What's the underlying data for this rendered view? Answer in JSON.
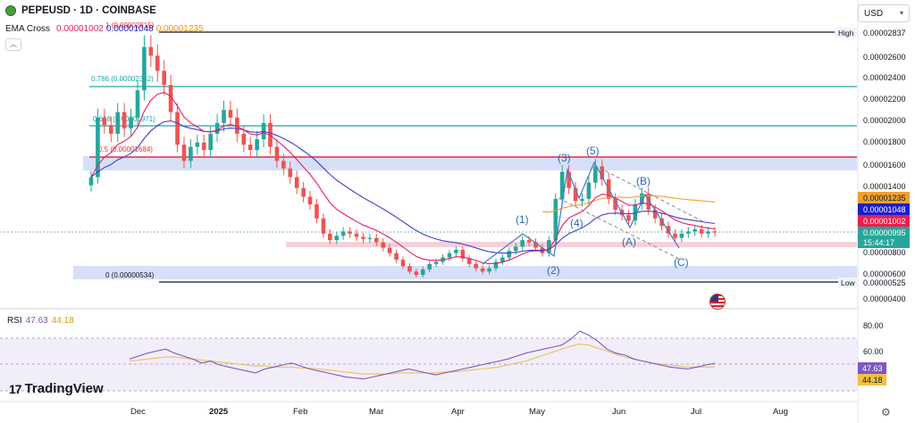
{
  "header": {
    "title": "PEPEUSD · 1D · COINBASE",
    "symbol_icon": "pepe-coin-icon"
  },
  "ema": {
    "label": "EMA Cross",
    "v1": "0.00001002",
    "v2": "0.00001048",
    "v3": "0.00001235"
  },
  "currency": {
    "label": "USD"
  },
  "rsi": {
    "label": "RSI",
    "v1": "47.63",
    "v2": "44.18"
  },
  "logo": {
    "text": "TradingView"
  },
  "colors": {
    "candle_up": "#26a69a",
    "candle_down": "#ef5350",
    "ema_fast": "#e91e63",
    "ema_mid": "#3f3fd0",
    "ema_slow": "#f0a030",
    "rsi": "#7e57c2",
    "rsi_ma": "#e8c25a",
    "fib_teal": "#22a6a6",
    "fib_red": "#e5323a",
    "zone": "#c9d6f5"
  },
  "chart_data": [
    {
      "type": "candlestick",
      "title": "PEPEUSD · 1D · COINBASE",
      "y_scale": "linear",
      "ylim": [
        3.6e-06,
        3e-06
      ],
      "y_ticks": [
        "0.00002600",
        "0.00002400",
        "0.00002200",
        "0.00002000",
        "0.00001800",
        "0.00001600",
        "0.00001400",
        "0.00000800",
        "0.00000600",
        "0.00000400"
      ],
      "x_ticks": [
        "Dec",
        "2025",
        "Feb",
        "Mar",
        "Apr",
        "May",
        "Jun",
        "Jul",
        "Aug"
      ],
      "price_labels": [
        {
          "text": "High",
          "value": "0.00002837"
        },
        {
          "text": "Low",
          "value": "0.00000525"
        },
        {
          "text": "",
          "value": "0.00001235"
        },
        {
          "text": "",
          "value": "0.00001048"
        },
        {
          "text": "",
          "value": "0.00001002"
        },
        {
          "text": "",
          "value": "0.00000995"
        },
        {
          "text": "",
          "value": "15:44:17"
        }
      ],
      "fib_levels": [
        {
          "label": "1 (0.00002815)",
          "value": 2.815e-05
        },
        {
          "label": "0.786 (0.00002342)",
          "value": 2.342e-05
        },
        {
          "label": "0.618 (0.00001971)",
          "value": 1.971e-05
        },
        {
          "label": "0.5 (0.00001684)",
          "value": 1.684e-05
        },
        {
          "label": "0 (0.00000534)",
          "value": 5.34e-06
        }
      ],
      "wave_labels": [
        "(1)",
        "(2)",
        "(3)",
        "(4)",
        "(5)",
        "(A)",
        "(B)",
        "(C)"
      ],
      "closes": [
        1.5e-05,
        2.05e-05,
        1.98e-05,
        1.9e-05,
        2.1e-05,
        1.95e-05,
        2.05e-05,
        2.3e-05,
        2.7e-05,
        2.62e-05,
        2.48e-05,
        2.35e-05,
        2.1e-05,
        1.8e-05,
        1.65e-05,
        1.78e-05,
        1.82e-05,
        1.75e-05,
        1.9e-05,
        2e-05,
        2.12e-05,
        2.05e-05,
        1.9e-05,
        1.8e-05,
        1.75e-05,
        1.85e-05,
        2e-05,
        1.78e-05,
        1.65e-05,
        1.58e-05,
        1.5e-05,
        1.4e-05,
        1.32e-05,
        1.25e-05,
        1.12e-05,
        9.8e-06,
        9.2e-06,
        9.6e-06,
        1e-05,
        9.8e-06,
        9.5e-06,
        9.3e-06,
        9.4e-06,
        9e-06,
        8.5e-06,
        8e-06,
        7.4e-06,
        6.8e-06,
        6.3e-06,
        6e-06,
        6.5e-06,
        7e-06,
        7.2e-06,
        7.6e-06,
        8e-06,
        8.3e-06,
        7.5e-06,
        7e-06,
        6.6e-06,
        6.3e-06,
        6.6e-06,
        7.2e-06,
        7.6e-06,
        8.2e-06,
        8.6e-06,
        9.2e-06,
        9e-06,
        8.5e-06,
        8e-06,
        9.2e-06,
        1.3e-05,
        1.55e-05,
        1.4e-05,
        1.28e-05,
        1.3e-05,
        1.45e-05,
        1.6e-05,
        1.48e-05,
        1.3e-05,
        1.2e-05,
        1.15e-05,
        1.1e-05,
        1.25e-05,
        1.35e-05,
        1.2e-05,
        1.12e-05,
        1.05e-05,
        9.8e-06,
        9.4e-06,
        9.8e-06,
        1e-05,
        1.02e-05,
        9.8e-06,
        1e-05,
        9.9e-06
      ]
    },
    {
      "type": "line",
      "title": "RSI",
      "y_ticks": [
        "80.00",
        "60.00"
      ],
      "series": [
        {
          "name": "RSI",
          "values": [
            52,
            55,
            58,
            60,
            62,
            58,
            55,
            52,
            48,
            50,
            46,
            44,
            42,
            40,
            38,
            42,
            44,
            46,
            48,
            45,
            42,
            40,
            38,
            36,
            34,
            33,
            32,
            34,
            36,
            38,
            40,
            42,
            40,
            38,
            36,
            38,
            40,
            42,
            44,
            46,
            48,
            50,
            52,
            55,
            58,
            60,
            62,
            64,
            66,
            72,
            80,
            76,
            70,
            62,
            58,
            56,
            52,
            50,
            48,
            46,
            44,
            43,
            42,
            44,
            46,
            47.63
          ]
        },
        {
          "name": "RSI-based MA",
          "values": [
            50,
            51,
            52,
            53,
            54,
            54,
            53,
            52,
            51,
            50,
            49,
            48,
            47,
            46,
            45,
            45,
            44,
            44,
            44,
            43,
            43,
            42,
            41,
            40,
            39,
            38,
            37,
            37,
            37,
            37,
            38,
            38,
            38,
            38,
            38,
            39,
            39,
            40,
            41,
            42,
            43,
            44,
            46,
            48,
            50,
            53,
            56,
            59,
            62,
            65,
            67,
            66,
            63,
            60,
            57,
            54,
            52,
            50,
            48,
            47,
            46,
            45,
            44,
            44,
            44,
            44.18
          ]
        }
      ],
      "ylim": [
        20,
        90
      ]
    }
  ]
}
